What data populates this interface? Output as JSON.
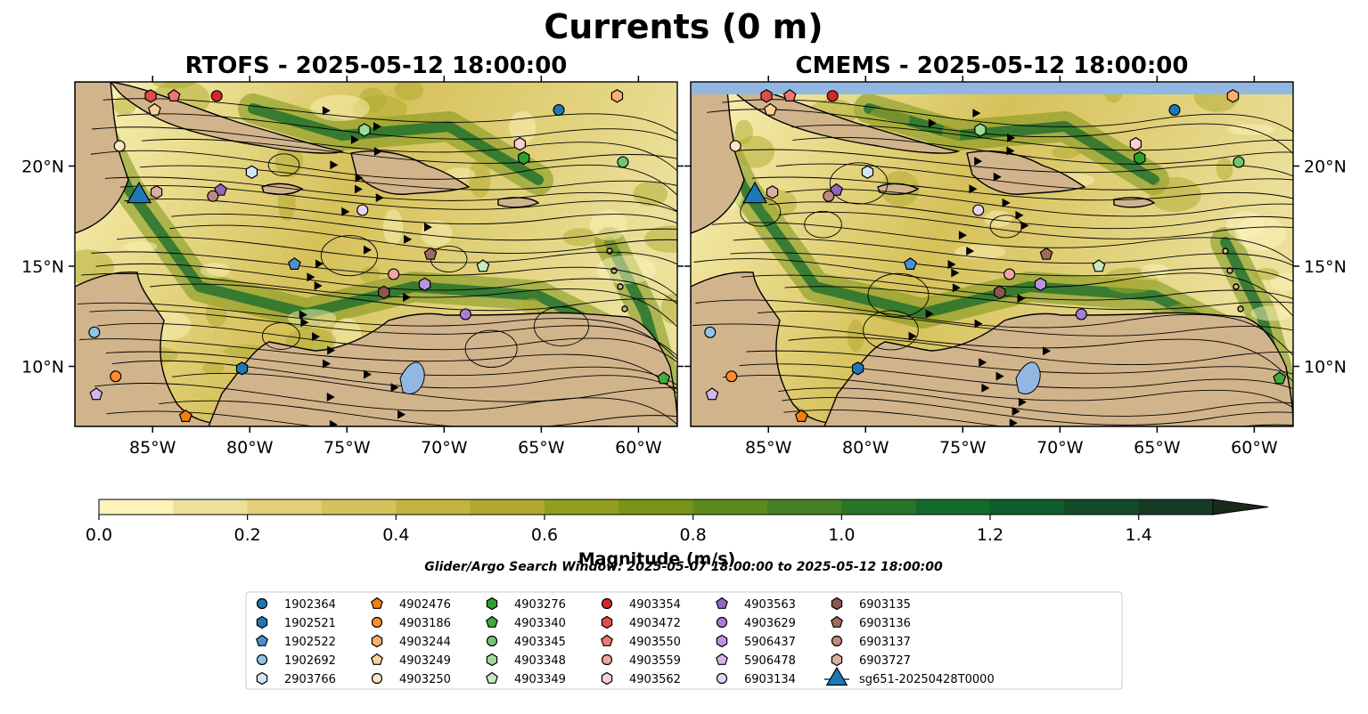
{
  "figure": {
    "title": "Currents (0 m)",
    "window_text": "Glider/Argo Search Window: 2025-05-07 18:00:00 to 2025-05-12 18:00:00"
  },
  "colors": {
    "land": "#d2b48c",
    "ocean_low": "#fbf3b9",
    "ocean_mid": "#a4a62a",
    "ocean_high": "#0f6a2c",
    "lake": "#93b7e3",
    "border": "#000000"
  },
  "chart_data": [
    {
      "type": "map",
      "title": "RTOFS - 2025-05-12 18:00:00",
      "x_ticks": [
        "85°W",
        "80°W",
        "75°W",
        "70°W",
        "65°W",
        "60°W"
      ],
      "y_ticks": [
        "10°N",
        "15°N",
        "20°N"
      ],
      "x_range": [
        -89,
        -58
      ],
      "y_range": [
        7,
        24.2
      ],
      "y_tick_side": "left"
    },
    {
      "type": "map",
      "title": "CMEMS - 2025-05-12 18:00:00",
      "x_ticks": [
        "85°W",
        "80°W",
        "75°W",
        "70°W",
        "65°W",
        "60°W"
      ],
      "y_ticks": [
        "10°N",
        "15°N",
        "20°N"
      ],
      "x_range": [
        -89,
        -58
      ],
      "y_range": [
        7,
        24.2
      ],
      "y_tick_side": "right"
    }
  ],
  "colorbar": {
    "label": "Magnitude (m/s)",
    "min": 0.0,
    "max": 1.5,
    "ticks": [
      "0.0",
      "0.2",
      "0.4",
      "0.6",
      "0.8",
      "1.0",
      "1.2",
      "1.4"
    ],
    "tick_values": [
      0,
      0.2,
      0.4,
      0.6,
      0.8,
      1.0,
      1.2,
      1.4
    ],
    "colors": [
      "#fbf3b9",
      "#ece09a",
      "#e2cf77",
      "#d6c15a",
      "#c3b43f",
      "#aea92e",
      "#929f1e",
      "#7a9418",
      "#5e8a1c",
      "#448023",
      "#2a7528",
      "#136a2b",
      "#0f5c2c",
      "#144a2a",
      "#163b24",
      "#192a1c"
    ],
    "extend": "max"
  },
  "legend": {
    "entries": [
      {
        "label": "1902364",
        "marker": "circle",
        "color": "#1f77b4"
      },
      {
        "label": "1902521",
        "marker": "hexagon",
        "color": "#1f77b4"
      },
      {
        "label": "1902522",
        "marker": "pentagon",
        "color": "#4f8fcf"
      },
      {
        "label": "1902692",
        "marker": "circle",
        "color": "#8ec4ea"
      },
      {
        "label": "2903766",
        "marker": "hexagon",
        "color": "#cfe6f7"
      },
      {
        "label": "4902476",
        "marker": "pentagon",
        "color": "#f57f0e"
      },
      {
        "label": "4903186",
        "marker": "circle",
        "color": "#fd8d2a"
      },
      {
        "label": "4903244",
        "marker": "hexagon",
        "color": "#fdae6b"
      },
      {
        "label": "4903249",
        "marker": "pentagon",
        "color": "#fdcf98"
      },
      {
        "label": "4903250",
        "marker": "circle",
        "color": "#fde4c6"
      },
      {
        "label": "4903276",
        "marker": "hexagon",
        "color": "#2ca02c"
      },
      {
        "label": "4903340",
        "marker": "pentagon",
        "color": "#41ab3c"
      },
      {
        "label": "4903345",
        "marker": "circle",
        "color": "#74c476"
      },
      {
        "label": "4903348",
        "marker": "hexagon",
        "color": "#a1d99b"
      },
      {
        "label": "4903349",
        "marker": "pentagon",
        "color": "#c7e9c0"
      },
      {
        "label": "4903354",
        "marker": "circle",
        "color": "#d62728"
      },
      {
        "label": "4903472",
        "marker": "hexagon",
        "color": "#e14b4b"
      },
      {
        "label": "4903550",
        "marker": "pentagon",
        "color": "#f07575"
      },
      {
        "label": "4903559",
        "marker": "circle",
        "color": "#f4a3a3"
      },
      {
        "label": "4903562",
        "marker": "hexagon",
        "color": "#fbd0d0"
      },
      {
        "label": "4903563",
        "marker": "pentagon",
        "color": "#9467bd"
      },
      {
        "label": "4903629",
        "marker": "circle",
        "color": "#a77fd2"
      },
      {
        "label": "5906437",
        "marker": "hexagon",
        "color": "#bb94e0"
      },
      {
        "label": "5906478",
        "marker": "pentagon",
        "color": "#d2b7ed"
      },
      {
        "label": "6903134",
        "marker": "circle",
        "color": "#e6d4f6"
      },
      {
        "label": "6903135",
        "marker": "hexagon",
        "color": "#8c564b"
      },
      {
        "label": "6903136",
        "marker": "pentagon",
        "color": "#a06a5c"
      },
      {
        "label": "6903137",
        "marker": "circle",
        "color": "#bc8a7e"
      },
      {
        "label": "6903727",
        "marker": "hexagon",
        "color": "#dbaea2"
      },
      {
        "label": "sg651-20250428T0000",
        "marker": "triangle",
        "color": "#1f77b4"
      }
    ]
  }
}
